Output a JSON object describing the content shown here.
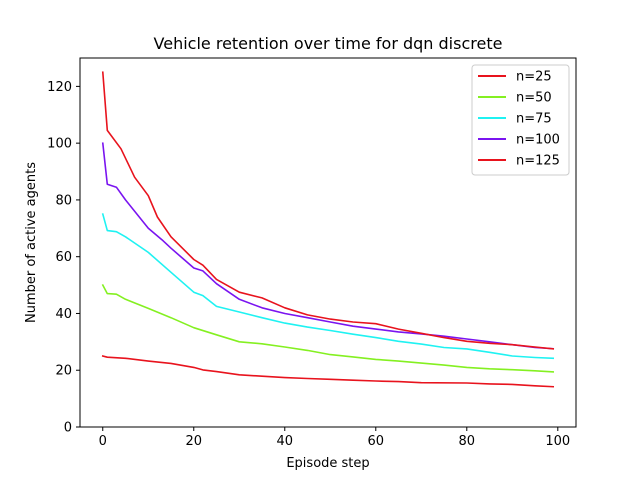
{
  "chart_data": {
    "type": "line",
    "title": "Vehicle retention over time for dqn discrete",
    "xlabel": "Episode step",
    "ylabel": "Number of active agents",
    "xlim": [
      -5,
      104
    ],
    "ylim": [
      0,
      130
    ],
    "xticks": [
      0,
      20,
      40,
      60,
      80,
      100
    ],
    "yticks": [
      0,
      20,
      40,
      60,
      80,
      100,
      120
    ],
    "grid": false,
    "legend_position": "top-right",
    "series": [
      {
        "name": "n=25",
        "color": "#e8131d",
        "x": [
          0,
          1,
          5,
          10,
          15,
          20,
          22,
          25,
          30,
          35,
          40,
          45,
          50,
          55,
          60,
          65,
          70,
          80,
          85,
          90,
          95,
          99
        ],
        "values": [
          25,
          24.6,
          24.2,
          23.2,
          22.4,
          21,
          20.1,
          19.5,
          18.4,
          17.9,
          17.4,
          17.1,
          16.8,
          16.5,
          16.2,
          16,
          15.6,
          15.5,
          15.2,
          15,
          14.5,
          14.2
        ]
      },
      {
        "name": "n=50",
        "color": "#84f021",
        "x": [
          0,
          1,
          3,
          5,
          10,
          15,
          20,
          25,
          30,
          35,
          40,
          45,
          50,
          55,
          60,
          65,
          70,
          75,
          80,
          85,
          90,
          95,
          99
        ],
        "values": [
          50,
          47,
          46.8,
          45,
          41.8,
          38.5,
          35,
          32.5,
          30,
          29.3,
          28.2,
          27,
          25.5,
          24.7,
          23.8,
          23.2,
          22.5,
          21.8,
          21,
          20.5,
          20.2,
          19.8,
          19.4
        ]
      },
      {
        "name": "n=75",
        "color": "#1ff2f2",
        "x": [
          0,
          1,
          3,
          5,
          10,
          15,
          20,
          22,
          25,
          30,
          35,
          40,
          45,
          50,
          55,
          60,
          65,
          70,
          75,
          80,
          85,
          90,
          95,
          99
        ],
        "values": [
          75,
          69.2,
          68.8,
          67,
          61.5,
          54.5,
          47.5,
          46.3,
          42.5,
          40.5,
          38.5,
          36.6,
          35.2,
          34,
          32.7,
          31.5,
          30.2,
          29.2,
          28,
          27.5,
          26.3,
          25,
          24.5,
          24.2
        ]
      },
      {
        "name": "n=100",
        "color": "#7a14f0",
        "x": [
          0,
          1,
          3,
          5,
          10,
          13,
          15,
          20,
          22,
          25,
          30,
          35,
          40,
          45,
          50,
          55,
          60,
          65,
          70,
          75,
          80,
          85,
          90,
          95,
          99
        ],
        "values": [
          100,
          85.5,
          84.5,
          80,
          70,
          66,
          63,
          56,
          55,
          50.5,
          45,
          42,
          40,
          38.5,
          37,
          35.5,
          34.5,
          33.5,
          32.8,
          32,
          31,
          30,
          29,
          28,
          27.6
        ]
      },
      {
        "name": "n=125",
        "color": "#e8131d",
        "x": [
          0,
          1,
          4,
          7,
          10,
          12,
          15,
          20,
          22,
          25,
          30,
          35,
          40,
          45,
          50,
          55,
          60,
          65,
          70,
          75,
          80,
          85,
          90,
          95,
          99
        ],
        "values": [
          125,
          104.5,
          98,
          88,
          81.5,
          74,
          67,
          59,
          57,
          52,
          47.5,
          45.5,
          42,
          39.5,
          38,
          37,
          36.4,
          34.5,
          33,
          31.5,
          30.2,
          29.5,
          29,
          28.2,
          27.5
        ]
      }
    ]
  }
}
